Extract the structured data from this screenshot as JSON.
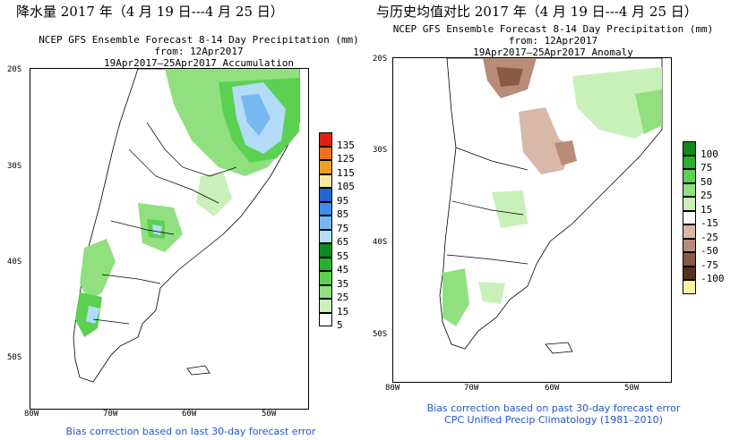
{
  "left": {
    "header": "降水量 2017 年（4 月 19 日---4 月 25 日）",
    "line1": "NCEP GFS Ensemble Forecast 8-14 Day Precipitation (mm)",
    "line2": "from: 12Apr2017",
    "line3": "19Apr2017–25Apr2017 Accumulation",
    "lat_labels": [
      "20S",
      "30S",
      "40S",
      "50S"
    ],
    "lon_labels": [
      "80W",
      "70W",
      "60W",
      "50W"
    ],
    "footer": "Bias correction based on last 30-day forecast error",
    "legend": [
      {
        "label": "135",
        "color": "#e02010"
      },
      {
        "label": "125",
        "color": "#f07020"
      },
      {
        "label": "115",
        "color": "#f0a020"
      },
      {
        "label": "105",
        "color": "#f8e8a0"
      },
      {
        "label": "95",
        "color": "#1e66d0"
      },
      {
        "label": "85",
        "color": "#3c8fe6"
      },
      {
        "label": "75",
        "color": "#78b8f0"
      },
      {
        "label": "65",
        "color": "#b4dcf8"
      },
      {
        "label": "55",
        "color": "#108a20"
      },
      {
        "label": "45",
        "color": "#28b030"
      },
      {
        "label": "35",
        "color": "#5cd050"
      },
      {
        "label": "25",
        "color": "#90e080"
      },
      {
        "label": "15",
        "color": "#c8f0b8"
      },
      {
        "label": "5",
        "color": "#ffffff"
      }
    ]
  },
  "right": {
    "header": "与历史均值对比 2017 年（4 月 19 日---4 月 25 日）",
    "line1": "NCEP GFS Ensemble Forecast 8-14 Day Precipitation (mm)",
    "line2": "from: 12Apr2017",
    "line3": "19Apr2017–25Apr2017 Anomaly",
    "lat_labels": [
      "20S",
      "30S",
      "40S",
      "50S"
    ],
    "lon_labels": [
      "80W",
      "70W",
      "60W",
      "50W"
    ],
    "footer1": "Bias correction based on past 30-day forecast error",
    "footer2": "CPC Unified Precip Climatology (1981–2010)",
    "legend": [
      {
        "label": "100",
        "color": "#108a20"
      },
      {
        "label": "75",
        "color": "#28b030"
      },
      {
        "label": "50",
        "color": "#5cd050"
      },
      {
        "label": "25",
        "color": "#90e080"
      },
      {
        "label": "15",
        "color": "#c8f0b8"
      },
      {
        "label": "-15",
        "color": "#ffffff"
      },
      {
        "label": "-25",
        "color": "#d8b8a8"
      },
      {
        "label": "-50",
        "color": "#b88c78"
      },
      {
        "label": "-75",
        "color": "#8a5a44"
      },
      {
        "label": "-100",
        "color": "#5a3020"
      },
      {
        "label": "",
        "color": "#fff2a0"
      }
    ]
  }
}
